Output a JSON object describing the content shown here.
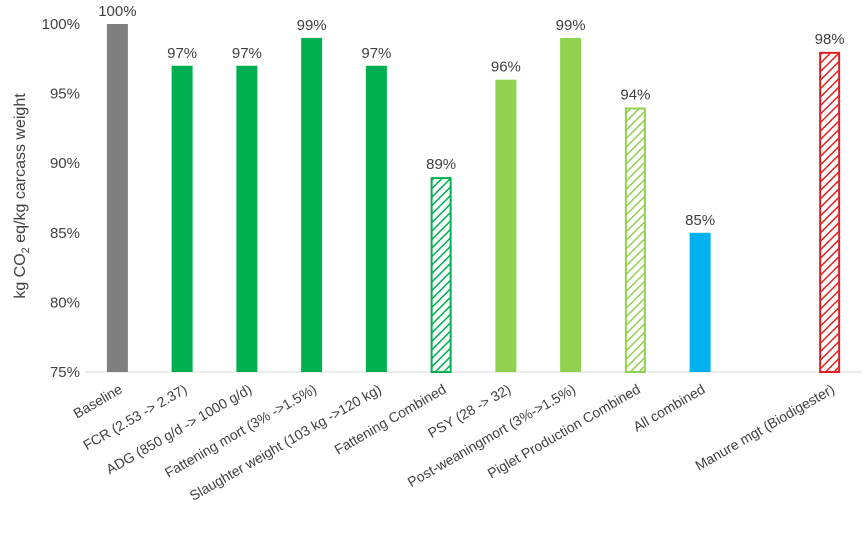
{
  "chart_data": {
    "type": "bar",
    "title": "",
    "xlabel": "",
    "ylabel_parts": [
      "kg CO",
      "2",
      " eq/kg carcass weight"
    ],
    "ylim": [
      75,
      100
    ],
    "yticks": [
      75,
      80,
      85,
      90,
      95,
      100
    ],
    "ytick_labels": [
      "75%",
      "80%",
      "85%",
      "90%",
      "95%",
      "100%"
    ],
    "grid": false,
    "legend": "none",
    "categories": [
      "Baseline",
      "FCR (2.53 -> 2.37)",
      "ADG (850 g/d -> 1000 g/d)",
      "Fattening mort (3% ->1.5%)",
      "Slaughter weight (103 kg ->120 kg)",
      "Fattening Combined",
      "PSY (28 -> 32)",
      "Post-weaningmort (3%->1.5%)",
      "Piglet Production Combined",
      "All combined",
      "",
      "Manure mgt (Biodigester)"
    ],
    "values": [
      100,
      97,
      97,
      99,
      97,
      89,
      96,
      99,
      94,
      85,
      null,
      98
    ],
    "data_labels": [
      "100%",
      "97%",
      "97%",
      "99%",
      "97%",
      "89%",
      "96%",
      "99%",
      "94%",
      "85%",
      "",
      "98%"
    ],
    "bar_colors": [
      "#7f7f7f",
      "#00b050",
      "#00b050",
      "#00b050",
      "#00b050",
      "#00b050",
      "#92d050",
      "#92d050",
      "#92d050",
      "#00b0f0",
      "",
      "#e02020"
    ],
    "bar_hatched": [
      false,
      false,
      false,
      false,
      false,
      true,
      false,
      false,
      true,
      false,
      false,
      true
    ]
  }
}
